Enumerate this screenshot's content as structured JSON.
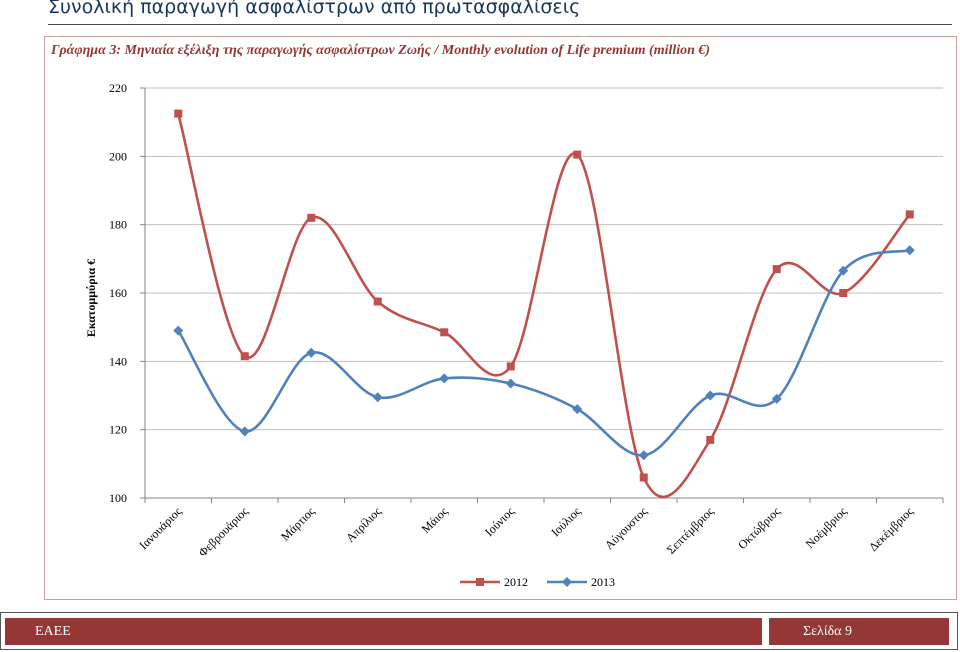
{
  "header": {
    "title": "Συνολική παραγωγή ασφαλίστρων από πρωτασφαλίσεις"
  },
  "footer": {
    "left_text": "ΕΑΕΕ",
    "right_text": "Σελίδα 9"
  },
  "chart_data": {
    "type": "line",
    "title": "Γράφημα 3: Μηνιαία εξέλιξη της παραγωγής ασφαλίστρων Ζωής / Monthly evolution of Life premium (million €)",
    "ylabel": "Εκατομμύρια  €",
    "xlabel": "",
    "ylim": [
      100,
      220
    ],
    "yticks": [
      100,
      120,
      140,
      160,
      180,
      200,
      220
    ],
    "grid": true,
    "legend_position": "bottom",
    "categories": [
      "Ιανουάριος",
      "Φεβρουάριος",
      "Μάρτιος",
      "Απρίλιος",
      "Μάιος",
      "Ιούνιος",
      "Ιούλιος",
      "Αύγουστος",
      "Σεπτέμβριος",
      "Οκτώβριος",
      "Νοέμβριος",
      "Δεκέμβριος"
    ],
    "series": [
      {
        "name": "2012",
        "color": "#c0504d",
        "marker": "square",
        "values": [
          212.5,
          141.5,
          182,
          157.5,
          148.5,
          138.5,
          200.5,
          106,
          117,
          167,
          160,
          183
        ]
      },
      {
        "name": "2013",
        "color": "#4f81bd",
        "marker": "diamond",
        "values": [
          149,
          119.5,
          142.5,
          129.5,
          135,
          133.5,
          126,
          112.5,
          130,
          129,
          166.5,
          172.5
        ]
      }
    ]
  }
}
